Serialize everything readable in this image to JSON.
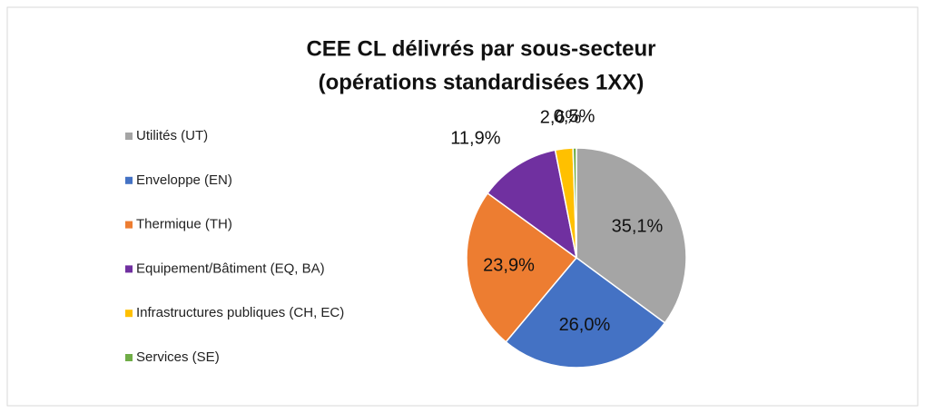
{
  "chart_data": {
    "type": "pie",
    "title": [
      "CEE CL délivrés par sous-secteur",
      "(opérations standardisées 1XX)"
    ],
    "categories": [
      "Utilités (UT)",
      "Enveloppe (EN)",
      "Thermique (TH)",
      "Equipement/Bâtiment (EQ, BA)",
      "Infrastructures publiques (CH, EC)",
      "Services (SE)"
    ],
    "values": [
      35.1,
      26.0,
      23.9,
      11.9,
      2.6,
      0.5
    ],
    "value_labels": [
      "35,1%",
      "26,0%",
      "23,9%",
      "11,9%",
      "2,6%",
      "0,5%"
    ],
    "colors": [
      "#a5a5a5",
      "#4472c4",
      "#ed7d31",
      "#7030a0",
      "#ffc000",
      "#70ad47"
    ],
    "legend": "left"
  }
}
